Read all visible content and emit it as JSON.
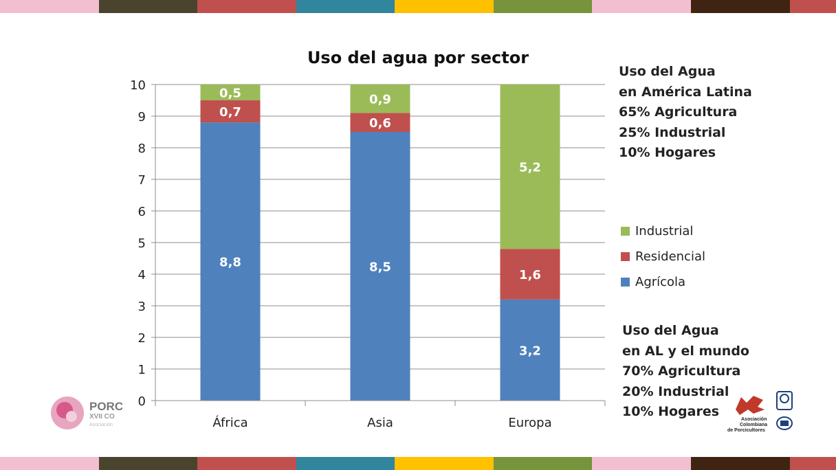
{
  "stripes": [
    "#f2bfd0",
    "#4a432e",
    "#c0504d",
    "#31859c",
    "#ffc000",
    "#77933c",
    "#f2bfd0",
    "#3f2511",
    "#c0504d"
  ],
  "chart_data": {
    "type": "bar",
    "stacked": true,
    "title": "Uso del agua por sector",
    "categories": [
      "África",
      "Asia",
      "Europa"
    ],
    "series": [
      {
        "name": "Agrícola",
        "color": "#4f81bd",
        "values": [
          8.8,
          8.5,
          3.2
        ],
        "labels": [
          "8,8",
          "8,5",
          "3,2"
        ]
      },
      {
        "name": "Residencial",
        "color": "#c0504d",
        "values": [
          0.7,
          0.6,
          1.6
        ],
        "labels": [
          "0,7",
          "0,6",
          "1,6"
        ]
      },
      {
        "name": "Industrial",
        "color": "#9bbb59",
        "values": [
          0.5,
          0.9,
          5.2
        ],
        "labels": [
          "0,5",
          "0,9",
          "5,2"
        ]
      }
    ],
    "ylim": [
      0,
      10
    ],
    "yticks": [
      "0",
      "1",
      "2",
      "3",
      "4",
      "5",
      "6",
      "7",
      "8",
      "9",
      "10"
    ],
    "grid": true,
    "legend_position": "right"
  },
  "legend_order": [
    "Industrial",
    "Residencial",
    "Agrícola"
  ],
  "notes": {
    "latam": [
      "Uso del Agua",
      "en América Latina",
      "65% Agricultura",
      "25% Industrial",
      "10% Hogares"
    ],
    "world": [
      "Uso del Agua",
      "en AL y el mundo",
      "70% Agricultura",
      "20% Industrial",
      "10% Hogares"
    ]
  },
  "logos": {
    "left_text": [
      "PORC",
      "XVII CO",
      "Asociación"
    ],
    "right_text": [
      "Asociación",
      "Colombiana",
      "de Porcicultores"
    ]
  }
}
